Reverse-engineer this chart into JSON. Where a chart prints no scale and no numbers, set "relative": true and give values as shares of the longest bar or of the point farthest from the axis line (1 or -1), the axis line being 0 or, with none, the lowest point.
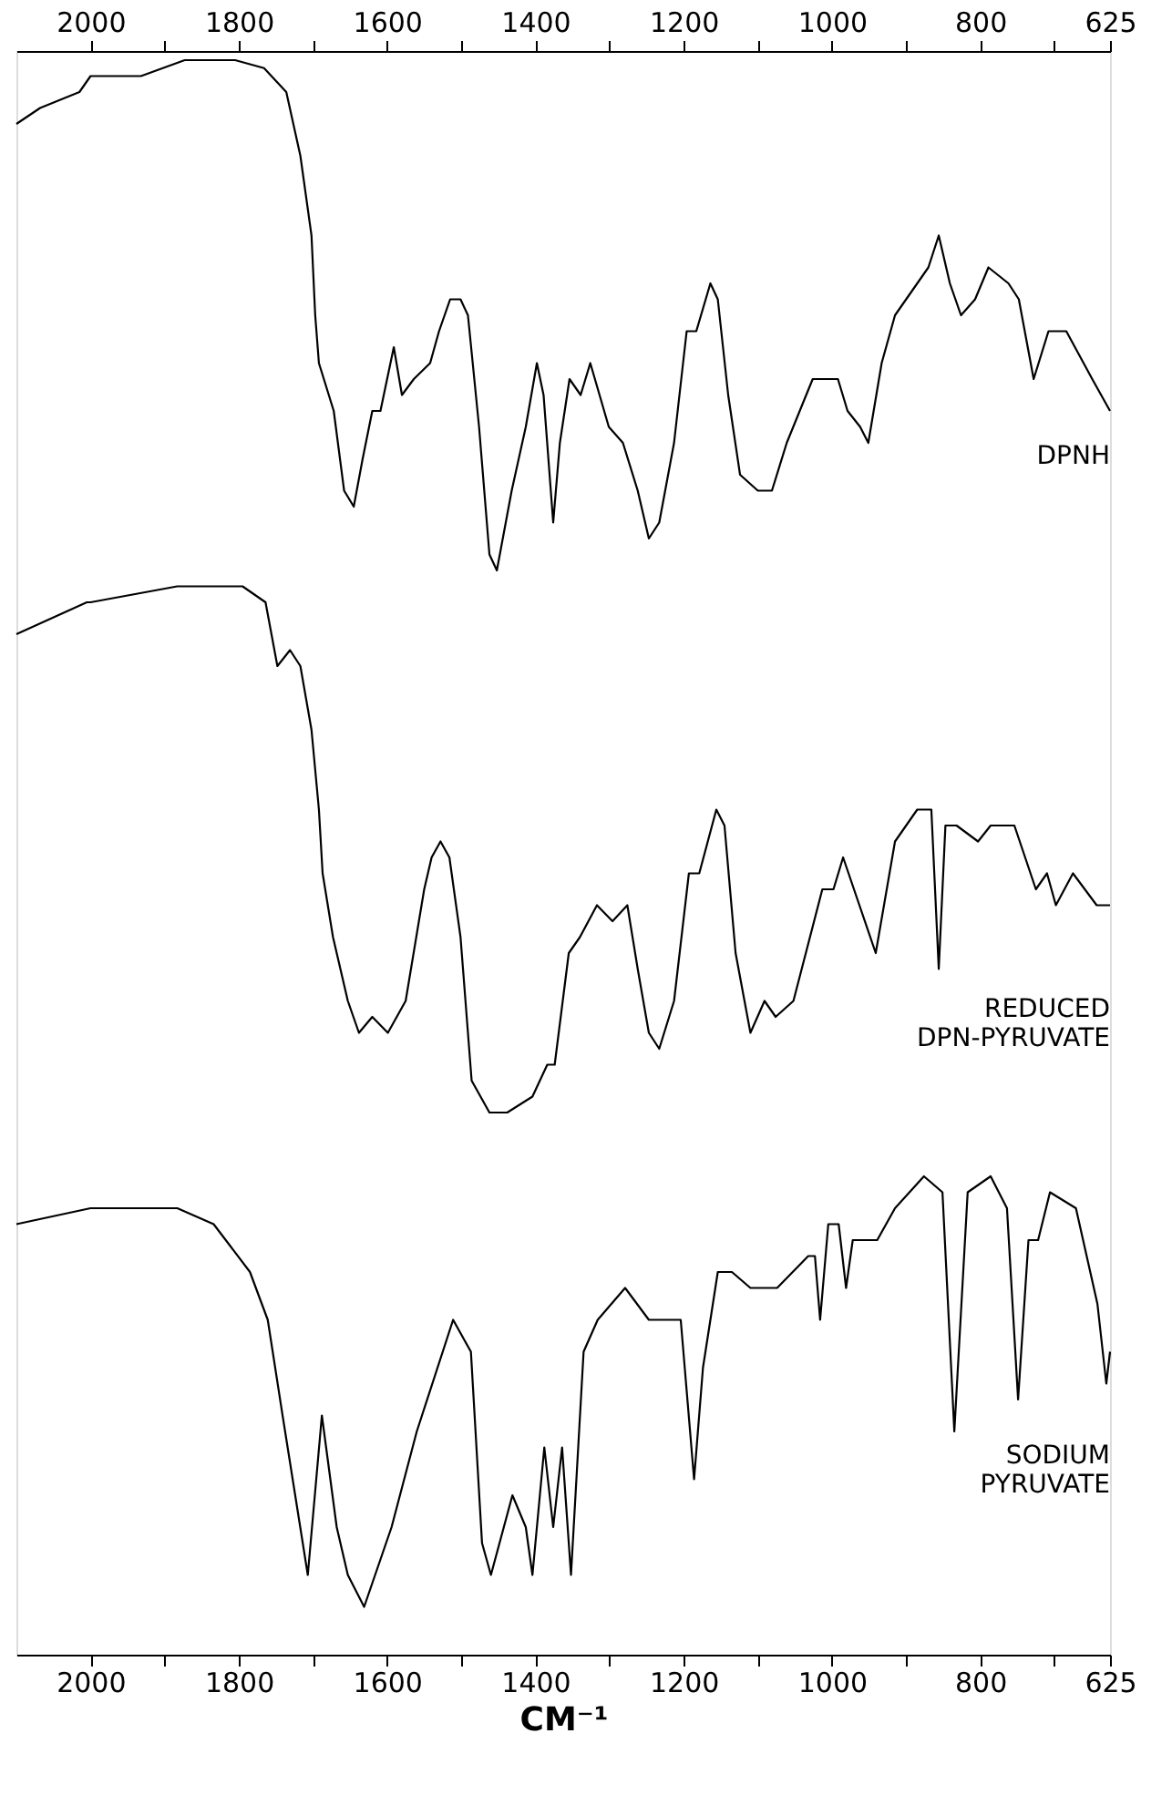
{
  "chart_data": {
    "type": "line",
    "relative": true,
    "xlabel": "CM⁻¹",
    "xlim": [
      2100,
      625
    ],
    "x2lim": [
      2100,
      625
    ],
    "xticks": [
      2000,
      {
        "value": 1900,
        "label": null
      },
      1800,
      {
        "value": 1700,
        "label": null
      },
      1600,
      {
        "value": 1500,
        "label": null
      },
      1400,
      {
        "value": 1300,
        "label": null
      },
      1200,
      {
        "value": 1100,
        "label": null
      },
      1000,
      {
        "value": 900,
        "label": null
      },
      800,
      {
        "value": 700,
        "label": null
      },
      625
    ],
    "x2ticks": [
      2000,
      {
        "value": 1900,
        "label": null
      },
      1800,
      {
        "value": 1700,
        "label": null
      },
      1600,
      {
        "value": 1500,
        "label": null
      },
      1400,
      {
        "value": 1300,
        "label": null
      },
      1200,
      {
        "value": 1100,
        "label": null
      },
      1000,
      {
        "value": 900,
        "label": null
      },
      800,
      {
        "value": 700,
        "label": null
      },
      625
    ],
    "legend": false,
    "grid": false,
    "line_style": "solid",
    "marker": "none",
    "series": [
      {
        "name": "DPNH",
        "color": "#000000",
        "x": [
          2100,
          2068,
          2015,
          2000,
          1932,
          1873,
          1805,
          1766,
          1736,
          1717,
          1702,
          1697,
          1692,
          1672,
          1658,
          1645,
          1633,
          1620,
          1609,
          1591,
          1580,
          1564,
          1542,
          1530,
          1515,
          1501,
          1491,
          1476,
          1462,
          1452,
          1432,
          1413,
          1398,
          1389,
          1376,
          1367,
          1354,
          1339,
          1326,
          1301,
          1282,
          1262,
          1247,
          1233,
          1213,
          1196,
          1183,
          1164,
          1154,
          1140,
          1124,
          1100,
          1081,
          1061,
          1026,
          992,
          979,
          962,
          951,
          933,
          915,
          885,
          870,
          856,
          841,
          826,
          807,
          789,
          762,
          748,
          728,
          708,
          684,
          649,
          625
        ],
        "values": [
          0.96,
          0.97,
          0.98,
          0.99,
          0.99,
          1.0,
          1.0,
          0.995,
          0.98,
          0.94,
          0.89,
          0.84,
          0.81,
          0.78,
          0.73,
          0.72,
          0.75,
          0.78,
          0.78,
          0.82,
          0.79,
          0.8,
          0.81,
          0.83,
          0.85,
          0.85,
          0.84,
          0.77,
          0.69,
          0.68,
          0.73,
          0.77,
          0.81,
          0.79,
          0.71,
          0.76,
          0.8,
          0.79,
          0.81,
          0.77,
          0.76,
          0.73,
          0.7,
          0.71,
          0.76,
          0.83,
          0.83,
          0.86,
          0.85,
          0.79,
          0.74,
          0.73,
          0.73,
          0.76,
          0.8,
          0.8,
          0.78,
          0.77,
          0.76,
          0.81,
          0.84,
          0.86,
          0.87,
          0.89,
          0.86,
          0.84,
          0.85,
          0.87,
          0.86,
          0.85,
          0.8,
          0.83,
          0.83,
          0.8,
          0.78
        ]
      },
      {
        "name": "REDUCED DPN-PYRUVATE",
        "color": "#000000",
        "x": [
          2100,
          2005,
          2000,
          1883,
          1795,
          1764,
          1748,
          1731,
          1717,
          1702,
          1692,
          1687,
          1673,
          1653,
          1638,
          1620,
          1599,
          1575,
          1550,
          1540,
          1528,
          1516,
          1501,
          1486,
          1462,
          1438,
          1404,
          1384,
          1374,
          1355,
          1340,
          1317,
          1296,
          1276,
          1262,
          1247,
          1233,
          1213,
          1193,
          1179,
          1156,
          1145,
          1130,
          1110,
          1091,
          1076,
          1052,
          1013,
          998,
          985,
          963,
          941,
          915,
          885,
          866,
          856,
          847,
          832,
          803,
          786,
          768,
          754,
          725,
          710,
          698,
          675,
          643,
          625
        ],
        "values": [
          0.64,
          0.66,
          0.66,
          0.67,
          0.67,
          0.66,
          0.62,
          0.63,
          0.62,
          0.58,
          0.53,
          0.49,
          0.45,
          0.41,
          0.39,
          0.4,
          0.39,
          0.41,
          0.48,
          0.5,
          0.51,
          0.5,
          0.45,
          0.36,
          0.34,
          0.34,
          0.35,
          0.37,
          0.37,
          0.44,
          0.45,
          0.47,
          0.46,
          0.47,
          0.43,
          0.39,
          0.38,
          0.41,
          0.49,
          0.49,
          0.53,
          0.52,
          0.44,
          0.39,
          0.41,
          0.4,
          0.41,
          0.48,
          0.48,
          0.5,
          0.47,
          0.44,
          0.51,
          0.53,
          0.53,
          0.43,
          0.52,
          0.52,
          0.51,
          0.52,
          0.52,
          0.52,
          0.48,
          0.49,
          0.47,
          0.49,
          0.47,
          0.47
        ]
      },
      {
        "name": "SODIUM PYRUVATE",
        "color": "#000000",
        "x": [
          2100,
          2000,
          1883,
          1834,
          1785,
          1761,
          1741,
          1707,
          1688,
          1668,
          1653,
          1631,
          1594,
          1560,
          1511,
          1487,
          1472,
          1460,
          1431,
          1413,
          1404,
          1388,
          1376,
          1364,
          1352,
          1335,
          1316,
          1279,
          1247,
          1204,
          1186,
          1174,
          1154,
          1135,
          1110,
          1096,
          1074,
          1032,
          1023,
          1016,
          1005,
          991,
          981,
          972,
          939,
          915,
          876,
          851,
          835,
          817,
          786,
          764,
          749,
          735,
          722,
          706,
          671,
          642,
          630,
          625
        ],
        "values": [
          0.27,
          0.28,
          0.28,
          0.27,
          0.24,
          0.21,
          0.15,
          0.05,
          0.15,
          0.08,
          0.05,
          0.03,
          0.08,
          0.14,
          0.21,
          0.19,
          0.07,
          0.05,
          0.1,
          0.08,
          0.05,
          0.13,
          0.08,
          0.13,
          0.05,
          0.19,
          0.21,
          0.23,
          0.21,
          0.21,
          0.11,
          0.18,
          0.24,
          0.24,
          0.23,
          0.23,
          0.23,
          0.25,
          0.25,
          0.21,
          0.27,
          0.27,
          0.23,
          0.26,
          0.26,
          0.28,
          0.3,
          0.29,
          0.14,
          0.29,
          0.3,
          0.28,
          0.16,
          0.26,
          0.26,
          0.29,
          0.28,
          0.22,
          0.17,
          0.19
        ]
      }
    ]
  }
}
